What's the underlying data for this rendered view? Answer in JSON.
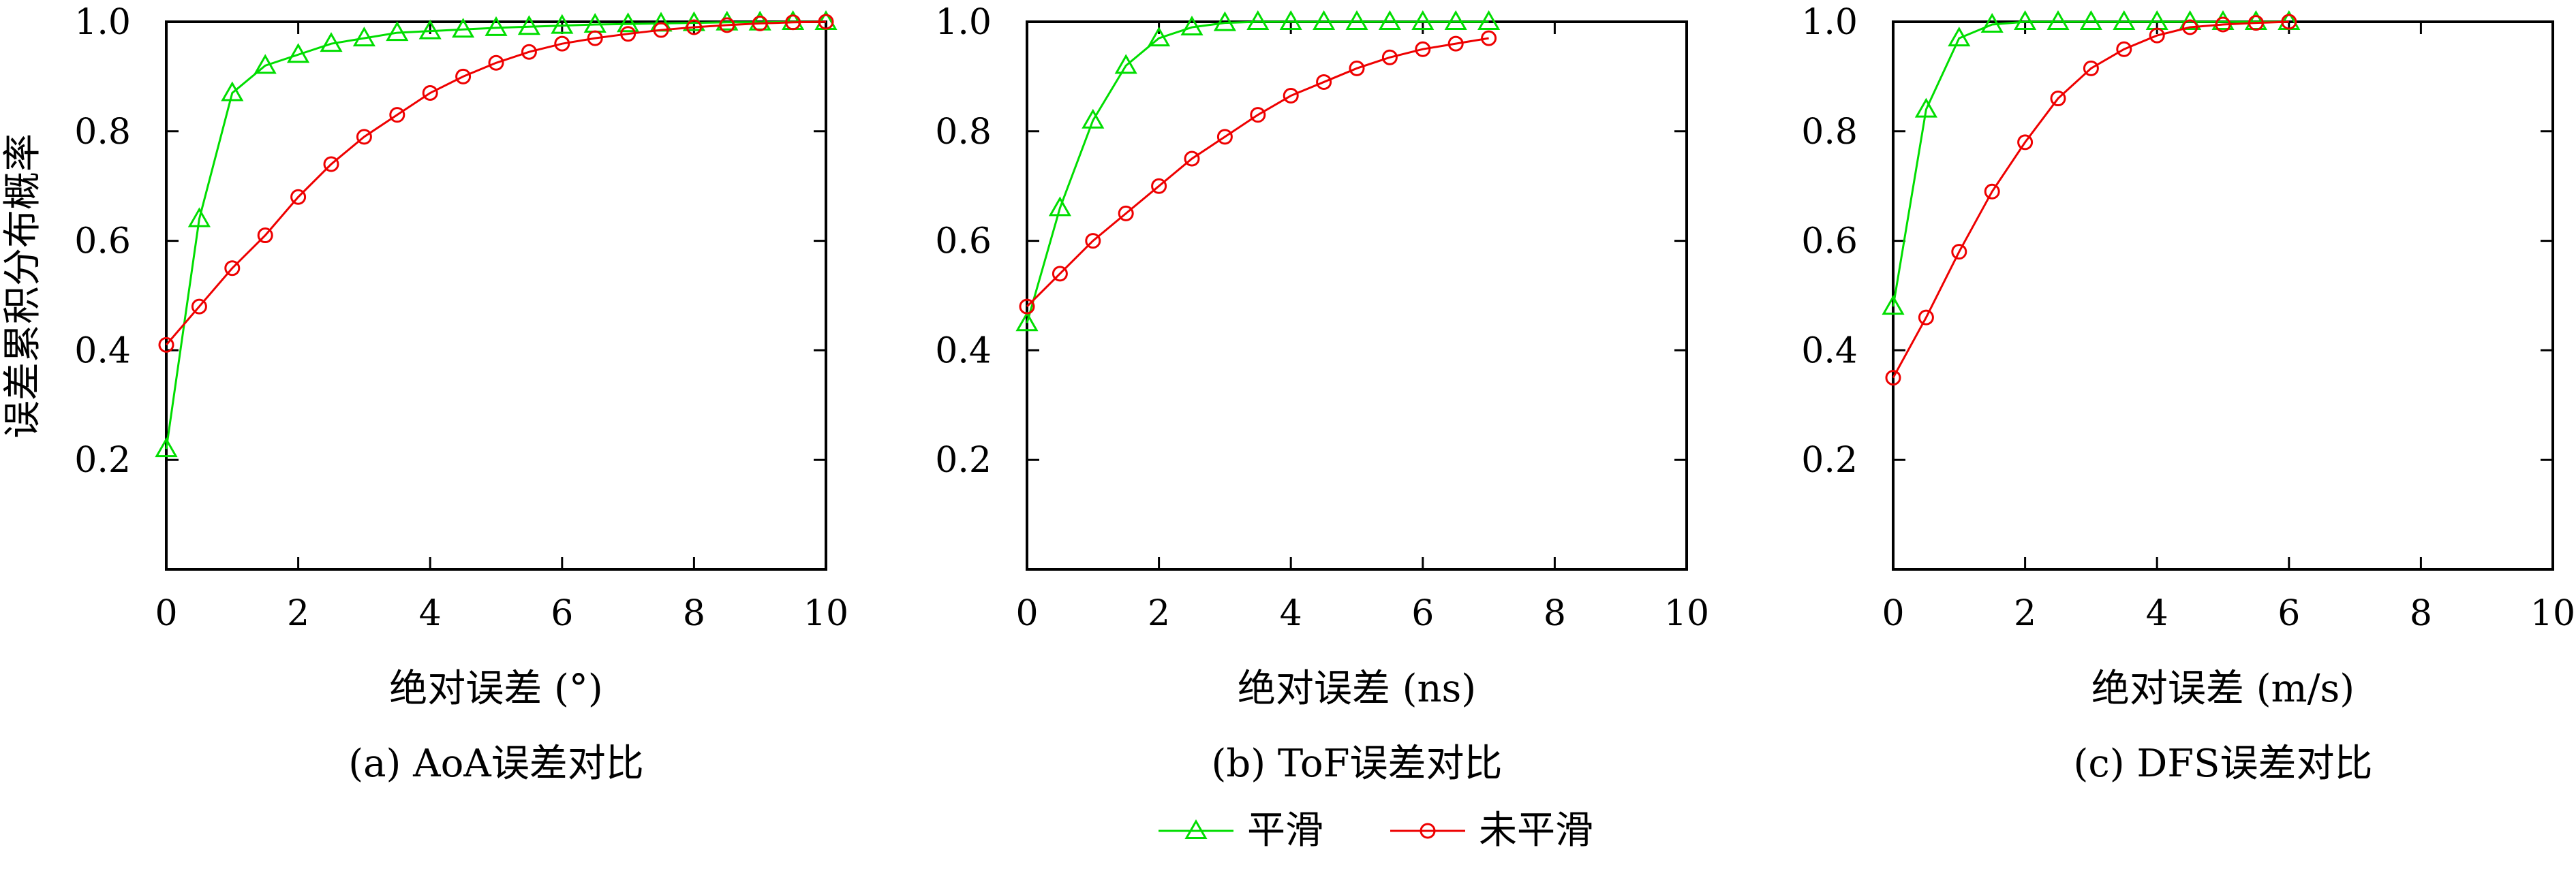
{
  "ylabel": "误差累积分布概率",
  "legend": [
    {
      "name": "平滑",
      "color": "#00dd00",
      "marker": "triangle"
    },
    {
      "name": "未平滑",
      "color": "#ee0000",
      "marker": "circle"
    }
  ],
  "chart_data": [
    {
      "type": "line",
      "caption": "(a) AoA误差对比",
      "xlabel": "绝对误差 (°)",
      "ylabel": "误差累积分布概率",
      "xlim": [
        0,
        10
      ],
      "ylim": [
        0,
        1.0
      ],
      "xticks": [
        "0",
        "2",
        "4",
        "6",
        "8",
        "10"
      ],
      "yticks": [
        "0.2",
        "0.4",
        "0.6",
        "0.8",
        "1.0"
      ],
      "grid": false,
      "legend_position": "bottom-center",
      "series": [
        {
          "name": "平滑",
          "x": [
            0,
            0.5,
            1.0,
            1.5,
            2.0,
            2.5,
            3.0,
            3.5,
            4.0,
            4.5,
            5.0,
            5.5,
            6.0,
            6.5,
            7.0,
            7.5,
            8.0,
            8.5,
            9.0,
            9.5,
            10.0
          ],
          "y": [
            0.22,
            0.64,
            0.87,
            0.92,
            0.94,
            0.96,
            0.97,
            0.98,
            0.983,
            0.986,
            0.989,
            0.991,
            0.993,
            0.995,
            0.996,
            0.997,
            0.998,
            0.999,
            0.999,
            1.0,
            1.0
          ]
        },
        {
          "name": "未平滑",
          "x": [
            0,
            0.5,
            1.0,
            1.5,
            2.0,
            2.5,
            3.0,
            3.5,
            4.0,
            4.5,
            5.0,
            5.5,
            6.0,
            6.5,
            7.0,
            7.5,
            8.0,
            8.5,
            9.0,
            9.5,
            10.0
          ],
          "y": [
            0.41,
            0.48,
            0.55,
            0.61,
            0.68,
            0.74,
            0.79,
            0.83,
            0.87,
            0.9,
            0.925,
            0.945,
            0.96,
            0.97,
            0.978,
            0.985,
            0.99,
            0.994,
            0.997,
            0.999,
            1.0
          ]
        }
      ]
    },
    {
      "type": "line",
      "caption": "(b) ToF误差对比",
      "xlabel": "绝对误差 (ns)",
      "ylabel": "",
      "xlim": [
        0,
        10
      ],
      "ylim": [
        0,
        1.0
      ],
      "xticks": [
        "0",
        "2",
        "4",
        "6",
        "8",
        "10"
      ],
      "yticks": [
        "0.2",
        "0.4",
        "0.6",
        "0.8",
        "1.0"
      ],
      "grid": false,
      "series": [
        {
          "name": "平滑",
          "x": [
            0,
            0.5,
            1.0,
            1.5,
            2.0,
            2.5,
            3.0,
            3.5,
            4.0,
            4.5,
            5.0,
            5.5,
            6.0,
            6.5,
            7.0
          ],
          "y": [
            0.45,
            0.66,
            0.82,
            0.92,
            0.97,
            0.99,
            0.998,
            1.0,
            1.0,
            1.0,
            1.0,
            1.0,
            1.0,
            1.0,
            1.0
          ]
        },
        {
          "name": "未平滑",
          "x": [
            0,
            0.5,
            1.0,
            1.5,
            2.0,
            2.5,
            3.0,
            3.5,
            4.0,
            4.5,
            5.0,
            5.5,
            6.0,
            6.5,
            7.0
          ],
          "y": [
            0.48,
            0.54,
            0.6,
            0.65,
            0.7,
            0.75,
            0.79,
            0.83,
            0.865,
            0.89,
            0.915,
            0.935,
            0.95,
            0.96,
            0.97
          ]
        }
      ]
    },
    {
      "type": "line",
      "caption": "(c) DFS误差对比",
      "xlabel": "绝对误差 (m/s)",
      "ylabel": "",
      "xlim": [
        0,
        10
      ],
      "ylim": [
        0,
        1.0
      ],
      "xticks": [
        "0",
        "2",
        "4",
        "6",
        "8",
        "10"
      ],
      "yticks": [
        "0.2",
        "0.4",
        "0.6",
        "0.8",
        "1.0"
      ],
      "grid": false,
      "series": [
        {
          "name": "平滑",
          "x": [
            0,
            0.5,
            1.0,
            1.5,
            2.0,
            2.5,
            3.0,
            3.5,
            4.0,
            4.5,
            5.0,
            5.5,
            6.0
          ],
          "y": [
            0.48,
            0.84,
            0.97,
            0.995,
            1.0,
            1.0,
            1.0,
            1.0,
            1.0,
            1.0,
            1.0,
            1.0,
            1.0
          ]
        },
        {
          "name": "未平滑",
          "x": [
            0,
            0.5,
            1.0,
            1.5,
            2.0,
            2.5,
            3.0,
            3.5,
            4.0,
            4.5,
            5.0,
            5.5,
            6.0
          ],
          "y": [
            0.35,
            0.46,
            0.58,
            0.69,
            0.78,
            0.86,
            0.915,
            0.95,
            0.975,
            0.99,
            0.995,
            0.998,
            1.0
          ]
        }
      ]
    }
  ]
}
